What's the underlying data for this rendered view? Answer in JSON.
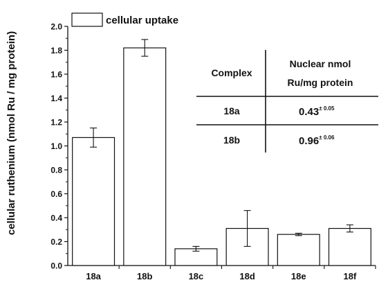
{
  "chart_data": {
    "type": "bar",
    "ylabel": "cellular ruthenium (nmol Ru / mg protein)",
    "xlabel": "",
    "ylim": [
      0,
      2.0
    ],
    "yticks": [
      "0.0",
      "0.2",
      "0.4",
      "0.6",
      "0.8",
      "1.0",
      "1.2",
      "1.4",
      "1.6",
      "1.8",
      "2.0"
    ],
    "categories": [
      "18a",
      "18b",
      "18c",
      "18d",
      "18e",
      "18f"
    ],
    "series": [
      {
        "name": "cellular uptake",
        "values": [
          1.07,
          1.82,
          0.14,
          0.31,
          0.26,
          0.31
        ],
        "errors": [
          0.08,
          0.07,
          0.02,
          0.15,
          0.01,
          0.03
        ]
      }
    ],
    "legend": {
      "label": "cellular uptake",
      "placement": "top-left"
    },
    "inset_table": {
      "headers": [
        "Complex",
        "Nuclear nmol",
        "Ru/mg protein"
      ],
      "rows": [
        {
          "complex": "18a",
          "value": "0.43",
          "error": "± 0.05"
        },
        {
          "complex": "18b",
          "value": "0.96",
          "error": "± 0.06"
        }
      ]
    }
  }
}
